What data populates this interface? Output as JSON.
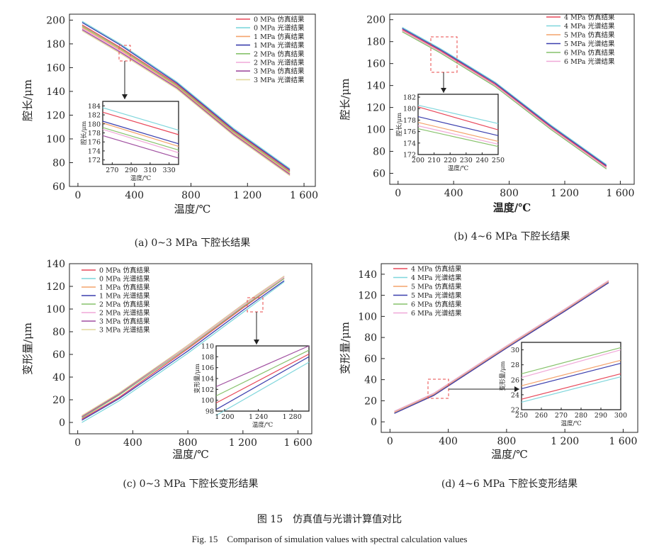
{
  "figure": {
    "caption_cn": "图 15　仿真值与光谱计算值对比",
    "caption_en": "Fig. 15　Comparison of simulation values with spectral calculation values"
  },
  "colors": {
    "red": "#e8485a",
    "cyan": "#7fd6dc",
    "orange": "#f4a36c",
    "blue": "#3b3fae",
    "green": "#86c26b",
    "pink": "#f0a8d8",
    "purple": "#a04fa0",
    "khaki": "#e2d79c"
  },
  "chart_data": [
    {
      "id": "a",
      "type": "line",
      "title": "(a) 0~3 MPa 下腔长结果",
      "xlabel": "温度/℃",
      "ylabel": "腔长/μm",
      "xlim": [
        -60,
        1680
      ],
      "ylim": [
        60,
        205
      ],
      "xticks": [
        0,
        400,
        800,
        1200,
        1600
      ],
      "xtick_labels": [
        "0",
        "400",
        "800",
        "1 200",
        "1 600"
      ],
      "yticks": [
        60,
        80,
        100,
        120,
        140,
        160,
        180,
        200
      ],
      "ytick_labels": [
        "60",
        "80",
        "100",
        "120",
        "140",
        "160",
        "180",
        "200"
      ],
      "legend_position": "top-right",
      "series": [
        {
          "name": "0 MPa 仿真结果",
          "color": "#e8485a",
          "x": [
            30,
            300,
            700,
            1100,
            1500
          ],
          "y": [
            196,
            177,
            146,
            107,
            73
          ]
        },
        {
          "name": "0 MPa 光谱结果",
          "color": "#7fd6dc",
          "x": [
            30,
            300,
            700,
            1100,
            1500
          ],
          "y": [
            199,
            180,
            148,
            109,
            75
          ]
        },
        {
          "name": "1 MPa 仿真结果",
          "color": "#f4a36c",
          "x": [
            30,
            300,
            700,
            1100,
            1500
          ],
          "y": [
            194,
            175,
            144,
            105,
            71
          ]
        },
        {
          "name": "1 MPa 光谱结果",
          "color": "#3b3fae",
          "x": [
            30,
            300,
            700,
            1100,
            1500
          ],
          "y": [
            198,
            179,
            147,
            108,
            74
          ]
        },
        {
          "name": "2 MPa 仿真结果",
          "color": "#86c26b",
          "x": [
            30,
            300,
            700,
            1100,
            1500
          ],
          "y": [
            195,
            176,
            145,
            106,
            72
          ]
        },
        {
          "name": "2 MPa 光谱结果",
          "color": "#f0a8d8",
          "x": [
            30,
            300,
            700,
            1100,
            1500
          ],
          "y": [
            193,
            174,
            143,
            104,
            70
          ]
        },
        {
          "name": "3 MPa 仿真结果",
          "color": "#a04fa0",
          "x": [
            30,
            300,
            700,
            1100,
            1500
          ],
          "y": [
            192,
            173,
            143,
            104,
            70
          ]
        },
        {
          "name": "3 MPa 光谱结果",
          "color": "#e2d79c",
          "x": [
            30,
            300,
            700,
            1100,
            1500
          ],
          "y": [
            191,
            172,
            142,
            103,
            69
          ]
        }
      ],
      "inset": {
        "xlim": [
          260,
          340
        ],
        "ylim": [
          171,
          185
        ],
        "xticks": [
          270,
          290,
          310,
          330
        ],
        "xtick_labels": [
          "270",
          "290",
          "310",
          "330"
        ],
        "yticks": [
          172,
          174,
          176,
          178,
          180,
          182,
          184
        ],
        "ytick_labels": [
          "172",
          "174",
          "176",
          "178",
          "180",
          "182",
          "184"
        ],
        "xlabel": "温度/℃",
        "ylabel": "腔长/μm",
        "series": [
          {
            "color": "#7fd6dc",
            "x": [
              260,
              340
            ],
            "y": [
              183.6,
              178.6
            ]
          },
          {
            "color": "#e8485a",
            "x": [
              260,
              340
            ],
            "y": [
              182.6,
              177.6
            ]
          },
          {
            "color": "#3b3fae",
            "x": [
              260,
              340
            ],
            "y": [
              180.6,
              175.6
            ]
          },
          {
            "color": "#f4a36c",
            "x": [
              260,
              340
            ],
            "y": [
              180.2,
              175.0
            ]
          },
          {
            "color": "#86c26b",
            "x": [
              260,
              340
            ],
            "y": [
              179.2,
              174.2
            ]
          },
          {
            "color": "#f0a8d8",
            "x": [
              260,
              340
            ],
            "y": [
              178.8,
              173.6
            ]
          },
          {
            "color": "#a04fa0",
            "x": [
              260,
              340
            ],
            "y": [
              177.4,
              172.4
            ]
          }
        ]
      }
    },
    {
      "id": "b",
      "type": "line",
      "title": "(b) 4~6 MPa 下腔长结果",
      "xlabel": "温度/℃",
      "ylabel": "腔长/μm",
      "xlim": [
        -60,
        1700
      ],
      "ylim": [
        50,
        205
      ],
      "xticks": [
        0,
        400,
        800,
        1200,
        1600
      ],
      "xtick_labels": [
        "0",
        "400",
        "800",
        "1 200",
        "1 600"
      ],
      "yticks": [
        60,
        80,
        100,
        120,
        140,
        160,
        180,
        200
      ],
      "ytick_labels": [
        "60",
        "80",
        "100",
        "120",
        "140",
        "160",
        "180",
        "200"
      ],
      "legend_position": "top-right",
      "series": [
        {
          "name": "4 MPa 仿真结果",
          "color": "#e8485a",
          "x": [
            30,
            300,
            700,
            1100,
            1500
          ],
          "y": [
            191,
            172,
            141,
            102,
            66
          ]
        },
        {
          "name": "4 MPa 光谱结果",
          "color": "#7fd6dc",
          "x": [
            30,
            300,
            700,
            1100,
            1500
          ],
          "y": [
            193,
            174,
            143,
            104,
            68
          ]
        },
        {
          "name": "5 MPa 仿真结果",
          "color": "#f4a36c",
          "x": [
            30,
            300,
            700,
            1100,
            1500
          ],
          "y": [
            190,
            171,
            140,
            101,
            65
          ]
        },
        {
          "name": "5 MPa 光谱结果",
          "color": "#3b3fae",
          "x": [
            30,
            300,
            700,
            1100,
            1500
          ],
          "y": [
            192,
            173,
            142,
            103,
            67
          ]
        },
        {
          "name": "6 MPa 仿真结果",
          "color": "#86c26b",
          "x": [
            30,
            300,
            700,
            1100,
            1500
          ],
          "y": [
            189,
            170,
            139,
            100,
            64
          ]
        },
        {
          "name": "6 MPa 光谱结果",
          "color": "#f0a8d8",
          "x": [
            30,
            300,
            700,
            1100,
            1500
          ],
          "y": [
            190,
            171,
            140,
            101,
            65
          ]
        }
      ],
      "inset": {
        "xlim": [
          200,
          250
        ],
        "ylim": [
          172,
          182.5
        ],
        "xticks": [
          200,
          210,
          220,
          230,
          240,
          250
        ],
        "xtick_labels": [
          "200",
          "210",
          "220",
          "230",
          "240",
          "250"
        ],
        "yticks": [
          172,
          174,
          176,
          178,
          180,
          182
        ],
        "ytick_labels": [
          "172",
          "174",
          "176",
          "178",
          "180",
          "182"
        ],
        "xlabel": "温度/℃",
        "ylabel": "腔长/μm",
        "series": [
          {
            "color": "#7fd6dc",
            "x": [
              200,
              250
            ],
            "y": [
              180.6,
              177.4
            ]
          },
          {
            "color": "#e8485a",
            "x": [
              200,
              250
            ],
            "y": [
              180.3,
              176.3
            ]
          },
          {
            "color": "#3b3fae",
            "x": [
              200,
              250
            ],
            "y": [
              178.6,
              175.3
            ]
          },
          {
            "color": "#f4a36c",
            "x": [
              200,
              250
            ],
            "y": [
              177.6,
              174.3
            ]
          },
          {
            "color": "#f0a8d8",
            "x": [
              200,
              250
            ],
            "y": [
              177.0,
              173.8
            ]
          },
          {
            "color": "#86c26b",
            "x": [
              200,
              250
            ],
            "y": [
              176.5,
              173.4
            ]
          }
        ]
      }
    },
    {
      "id": "c",
      "type": "line",
      "title": "(c) 0~3 MPa 下腔长变形结果",
      "xlabel": "温度/℃",
      "ylabel": "变形量/μm",
      "xlim": [
        -60,
        1700
      ],
      "ylim": [
        -10,
        140
      ],
      "xticks": [
        0,
        400,
        800,
        1200,
        1600
      ],
      "xtick_labels": [
        "0",
        "400",
        "800",
        "1 200",
        "1 600"
      ],
      "yticks": [
        0,
        20,
        40,
        60,
        80,
        100,
        120,
        140
      ],
      "ytick_labels": [
        "0",
        "20",
        "40",
        "60",
        "80",
        "100",
        "120",
        "140"
      ],
      "legend_position": "top-left",
      "series": [
        {
          "name": "0 MPa 仿真结果",
          "color": "#e8485a",
          "x": [
            30,
            300,
            800,
            1200,
            1500
          ],
          "y": [
            3,
            22,
            65,
            101,
            127
          ]
        },
        {
          "name": "0 MPa 光谱结果",
          "color": "#7fd6dc",
          "x": [
            30,
            300,
            800,
            1200,
            1500
          ],
          "y": [
            0,
            19,
            61,
            97,
            124
          ]
        },
        {
          "name": "1 MPa 仿真结果",
          "color": "#f4a36c",
          "x": [
            30,
            300,
            800,
            1200,
            1500
          ],
          "y": [
            6,
            25,
            68,
            104,
            129
          ]
        },
        {
          "name": "1 MPa 光谱结果",
          "color": "#3b3fae",
          "x": [
            30,
            300,
            800,
            1200,
            1500
          ],
          "y": [
            2,
            21,
            63,
            99,
            125
          ]
        },
        {
          "name": "2 MPa 仿真结果",
          "color": "#86c26b",
          "x": [
            30,
            300,
            800,
            1200,
            1500
          ],
          "y": [
            4,
            24,
            66,
            102,
            127
          ]
        },
        {
          "name": "2 MPa 光谱结果",
          "color": "#f0a8d8",
          "x": [
            30,
            300,
            800,
            1200,
            1500
          ],
          "y": [
            5,
            25,
            67,
            103,
            128
          ]
        },
        {
          "name": "3 MPa 仿真结果",
          "color": "#a04fa0",
          "x": [
            30,
            300,
            800,
            1200,
            1500
          ],
          "y": [
            5,
            25,
            68,
            104,
            129
          ]
        },
        {
          "name": "3 MPa 光谱结果",
          "color": "#e2d79c",
          "x": [
            30,
            300,
            800,
            1200,
            1500
          ],
          "y": [
            6,
            26,
            68,
            104,
            129
          ]
        }
      ],
      "inset": {
        "xlim": [
          1190,
          1300
        ],
        "ylim": [
          98,
          110
        ],
        "xticks": [
          1200,
          1240,
          1280
        ],
        "xtick_labels": [
          "1 200",
          "1 240",
          "1 280"
        ],
        "yticks": [
          98,
          100,
          102,
          104,
          106,
          108,
          110
        ],
        "ytick_labels": [
          "98",
          "100",
          "102",
          "104",
          "106",
          "108",
          "110"
        ],
        "xlabel": "温度/℃",
        "ylabel": "变形量/μm",
        "series": [
          {
            "color": "#a04fa0",
            "x": [
              1190,
              1300
            ],
            "y": [
              102.5,
              110.0
            ]
          },
          {
            "color": "#86c26b",
            "x": [
              1190,
              1300
            ],
            "y": [
              100.8,
              109.2
            ]
          },
          {
            "color": "#e8485a",
            "x": [
              1190,
              1300
            ],
            "y": [
              99.5,
              108.5
            ]
          },
          {
            "color": "#3b3fae",
            "x": [
              1190,
              1300
            ],
            "y": [
              98.3,
              108.0
            ]
          },
          {
            "color": "#7fd6dc",
            "x": [
              1190,
              1300
            ],
            "y": [
              97.2,
              107.0
            ]
          }
        ]
      }
    },
    {
      "id": "d",
      "type": "line",
      "title": "(d) 4~6 MPa 下腔长变形结果",
      "xlabel": "温度/℃",
      "ylabel": "变形量/μm",
      "xlim": [
        -60,
        1700
      ],
      "ylim": [
        -10,
        150
      ],
      "xticks": [
        0,
        400,
        800,
        1200,
        1600
      ],
      "xtick_labels": [
        "0",
        "400",
        "800",
        "1 200",
        "1 600"
      ],
      "yticks": [
        0,
        20,
        40,
        60,
        80,
        100,
        120,
        140
      ],
      "ytick_labels": [
        "0",
        "20",
        "40",
        "60",
        "80",
        "100",
        "120",
        "140"
      ],
      "legend_position": "top-left",
      "series": [
        {
          "name": "4 MPa 仿真结果",
          "color": "#e8485a",
          "x": [
            30,
            300,
            800,
            1200,
            1500
          ],
          "y": [
            8,
            25,
            70,
            105,
            132
          ]
        },
        {
          "name": "4 MPa 光谱结果",
          "color": "#7fd6dc",
          "x": [
            30,
            300,
            800,
            1200,
            1500
          ],
          "y": [
            8,
            26,
            71,
            106,
            133
          ]
        },
        {
          "name": "5 MPa 仿真结果",
          "color": "#f4a36c",
          "x": [
            30,
            300,
            800,
            1200,
            1500
          ],
          "y": [
            9,
            26,
            71,
            106,
            133
          ]
        },
        {
          "name": "5 MPa 光谱结果",
          "color": "#3b3fae",
          "x": [
            30,
            300,
            800,
            1200,
            1500
          ],
          "y": [
            8,
            25,
            70,
            105,
            132
          ]
        },
        {
          "name": "6 MPa 仿真结果",
          "color": "#86c26b",
          "x": [
            30,
            300,
            800,
            1200,
            1500
          ],
          "y": [
            10,
            27,
            72,
            107,
            134
          ]
        },
        {
          "name": "6 MPa 光谱结果",
          "color": "#f0a8d8",
          "x": [
            30,
            300,
            800,
            1200,
            1500
          ],
          "y": [
            10,
            27,
            72,
            107,
            134
          ]
        }
      ],
      "inset": {
        "xlim": [
          250,
          300
        ],
        "ylim": [
          22,
          31
        ],
        "xticks": [
          250,
          260,
          270,
          280,
          290,
          300
        ],
        "xtick_labels": [
          "250",
          "260",
          "270",
          "280",
          "290",
          "300"
        ],
        "yticks": [
          22,
          24,
          26,
          28,
          30
        ],
        "ytick_labels": [
          "22",
          "24",
          "26",
          "28",
          "30"
        ],
        "xlabel": "温度/℃",
        "ylabel": "变形量/μm",
        "series": [
          {
            "color": "#86c26b",
            "x": [
              250,
              300
            ],
            "y": [
              26.8,
              30.3
            ]
          },
          {
            "color": "#f0a8d8",
            "x": [
              250,
              300
            ],
            "y": [
              26.3,
              30.0
            ]
          },
          {
            "color": "#f4a36c",
            "x": [
              250,
              300
            ],
            "y": [
              25.2,
              28.6
            ]
          },
          {
            "color": "#3b3fae",
            "x": [
              250,
              300
            ],
            "y": [
              24.8,
              28.2
            ]
          },
          {
            "color": "#e8485a",
            "x": [
              250,
              300
            ],
            "y": [
              23.4,
              26.8
            ]
          },
          {
            "color": "#7fd6dc",
            "x": [
              250,
              300
            ],
            "y": [
              23.0,
              26.4
            ]
          }
        ]
      }
    }
  ]
}
